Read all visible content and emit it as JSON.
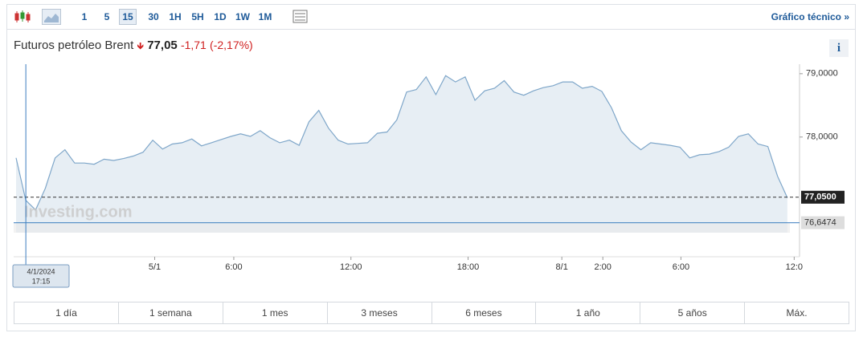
{
  "toolbar": {
    "intervals": [
      "1",
      "5",
      "15",
      "30",
      "1H",
      "5H",
      "1D",
      "1W",
      "1M"
    ],
    "link": "Gráfico técnico »"
  },
  "header": {
    "name": "Futuros petróleo Brent",
    "price": "77,05",
    "change": "-1,71",
    "change_pct": "(-2,17%)",
    "info": "i"
  },
  "chart_data": {
    "type": "area",
    "watermark": "Investing.com",
    "color": "#7ea6c9",
    "values": [
      77.67,
      77.0,
      76.85,
      77.19,
      77.67,
      77.8,
      77.59,
      77.59,
      77.57,
      77.65,
      77.63,
      77.66,
      77.7,
      77.76,
      77.95,
      77.81,
      77.89,
      77.91,
      77.97,
      77.86,
      77.91,
      77.96,
      78.01,
      78.05,
      78.01,
      78.1,
      77.99,
      77.91,
      77.95,
      77.87,
      78.24,
      78.42,
      78.14,
      77.95,
      77.89,
      77.9,
      77.91,
      78.06,
      78.08,
      78.27,
      78.71,
      78.75,
      78.95,
      78.67,
      78.97,
      78.87,
      78.95,
      78.58,
      78.73,
      78.77,
      78.89,
      78.71,
      78.66,
      78.73,
      78.78,
      78.81,
      78.87,
      78.87,
      78.77,
      78.8,
      78.72,
      78.46,
      78.1,
      77.92,
      77.8,
      77.91,
      77.89,
      77.87,
      77.84,
      77.67,
      77.72,
      77.73,
      77.77,
      77.84,
      78.01,
      78.05,
      77.89,
      77.85,
      77.38,
      77.04
    ],
    "xlim": [
      0,
      80
    ],
    "xticks": [
      {
        "value": 14.2,
        "label": "5/1"
      },
      {
        "value": 22.3,
        "label": "6:00"
      },
      {
        "value": 34.3,
        "label": "12:00"
      },
      {
        "value": 46.3,
        "label": "18:00"
      },
      {
        "value": 55.9,
        "label": "8/1"
      },
      {
        "value": 60.1,
        "label": "2:00"
      },
      {
        "value": 68.1,
        "label": "6:00"
      },
      {
        "value": 79.7,
        "label": "12:0"
      }
    ],
    "ylim": [
      76.49,
      79.15
    ],
    "yticks": [
      {
        "value": 79,
        "label": "79,0000"
      },
      {
        "value": 78,
        "label": "78,0000"
      }
    ],
    "last_price": {
      "value": 77.05,
      "label": "77,0500"
    },
    "cursor": {
      "x": 1,
      "date": "4/1/2024",
      "time": "17:15",
      "value": 76.6474,
      "label": "76,6474"
    }
  },
  "ranges": [
    "1 día",
    "1 semana",
    "1 mes",
    "3 meses",
    "6 meses",
    "1 año",
    "5 años",
    "Máx."
  ]
}
